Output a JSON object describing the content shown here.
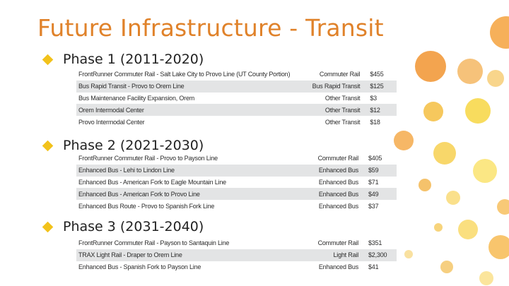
{
  "title": "Future Infrastructure - Transit",
  "colors": {
    "title": "#e0822a",
    "bullet": "#f2c21b",
    "row_shade": "#e3e4e5"
  },
  "phases": [
    {
      "heading": "Phase 1 (2011-2020)",
      "rows": [
        [
          "FrontRunner Commuter Rail - Salt Lake City to Provo Line (UT County Portion)",
          "Commuter Rail",
          "$455"
        ],
        [
          "Bus Rapid Transit - Provo to Orem Line",
          "Bus Rapid Transit",
          "$125"
        ],
        [
          "Bus Maintenance Facility Expansion, Orem",
          "Other Transit",
          "$3"
        ],
        [
          "Orem Intermodal Center",
          "Other Transit",
          "$12"
        ],
        [
          "Provo Intermodal Center",
          "Other Transit",
          "$18"
        ]
      ]
    },
    {
      "heading": "Phase 2 (2021-2030)",
      "rows": [
        [
          "FrontRunner Commuter Rail - Provo to Payson Line",
          "Commuter Rail",
          "$405"
        ],
        [
          "Enhanced Bus - Lehi to Lindon Line",
          "Enhanced Bus",
          "$59"
        ],
        [
          "Enhanced Bus - American Fork to Eagle Mountain Line",
          "Enhanced Bus",
          "$71"
        ],
        [
          "Enhanced Bus - American Fork to Provo Line",
          "Enhanced Bus",
          "$49"
        ],
        [
          "Enhanced Bus Route - Provo to Spanish Fork Line",
          "Enhanced Bus",
          "$37"
        ]
      ]
    },
    {
      "heading": "Phase 3 (2031-2040)",
      "rows": [
        [
          "FrontRunner Commuter Rail - Payson to Santaquin Line",
          "Commuter Rail",
          "$351"
        ],
        [
          "TRAX Light Rail - Draper to Orem Line",
          "Light Rail",
          "$2,300"
        ],
        [
          "Enhanced Bus - Spanish Fork to Payson Line",
          "Enhanced Bus",
          "$41"
        ]
      ]
    }
  ]
}
